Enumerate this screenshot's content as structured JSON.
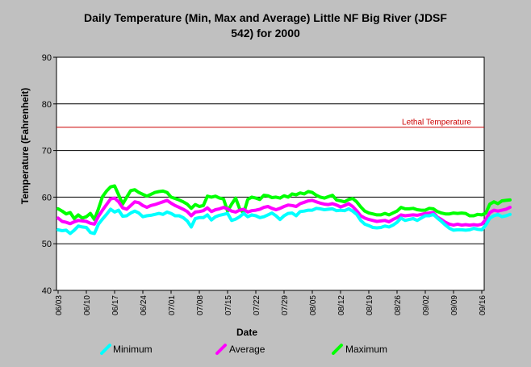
{
  "chart_data": {
    "type": "line",
    "title_line1": "Daily Temperature (Min, Max and Average) Little NF Big River (JDSF",
    "title_line2": "542) for 2000",
    "xlabel": "Date",
    "ylabel": "Temperature (Fahrenheit)",
    "ylim": [
      40,
      90
    ],
    "yticks": [
      40,
      50,
      60,
      70,
      80,
      90
    ],
    "grid": "horizontal",
    "legend_position": "bottom",
    "x_start": "06/03",
    "x_end": "09/21",
    "xtick_labels": [
      "06/03",
      "06/10",
      "06/17",
      "06/24",
      "07/01",
      "07/08",
      "07/15",
      "07/22",
      "07/29",
      "08/05",
      "08/12",
      "08/19",
      "08/26",
      "09/02",
      "09/09",
      "09/16"
    ],
    "annotation": {
      "text": "Lethal Temperature",
      "value": 75,
      "color": "#cc0000"
    },
    "series": [
      {
        "name": "Minimum",
        "color": "#00ffff",
        "values": [
          53.0,
          52.8,
          52.9,
          52.2,
          52.9,
          53.8,
          53.6,
          53.5,
          52.4,
          52.2,
          54.2,
          55.3,
          56.3,
          57.4,
          56.8,
          57.2,
          55.9,
          56.0,
          56.6,
          57.0,
          56.6,
          55.8,
          56.0,
          56.1,
          56.3,
          56.5,
          56.3,
          56.8,
          56.5,
          56.0,
          56.0,
          55.6,
          54.9,
          53.6,
          55.4,
          55.6,
          55.6,
          56.2,
          55.1,
          55.8,
          56.1,
          56.3,
          56.5,
          55.0,
          55.3,
          55.8,
          56.5,
          55.8,
          56.2,
          56.0,
          55.6,
          55.8,
          56.2,
          56.6,
          56.0,
          55.2,
          56.0,
          56.5,
          56.6,
          56.0,
          56.9,
          57.0,
          57.2,
          57.2,
          57.6,
          57.5,
          57.3,
          57.4,
          57.5,
          57.1,
          57.2,
          57.1,
          57.5,
          57.0,
          56.3,
          55.0,
          54.2,
          53.9,
          53.5,
          53.4,
          53.5,
          53.8,
          53.6,
          54.0,
          54.6,
          55.5,
          55.0,
          55.2,
          55.4,
          55.0,
          55.5,
          56.0,
          56.0,
          56.3,
          55.5,
          54.8,
          54.0,
          53.3,
          52.9,
          53.0,
          53.0,
          52.9,
          53.0,
          53.3,
          53.1,
          53.0,
          54.0,
          55.5,
          56.0,
          56.3,
          55.8,
          56.0,
          56.3
        ]
      },
      {
        "name": "Average",
        "color": "#ff00ff",
        "values": [
          55.5,
          54.8,
          54.6,
          54.3,
          54.7,
          55.0,
          54.9,
          54.8,
          54.4,
          54.2,
          55.9,
          57.2,
          58.4,
          59.6,
          59.8,
          59.0,
          57.7,
          57.4,
          58.2,
          59.0,
          58.8,
          58.2,
          57.8,
          58.2,
          58.4,
          58.7,
          59.0,
          59.3,
          58.7,
          58.2,
          57.8,
          57.4,
          56.9,
          56.0,
          56.8,
          56.9,
          57.1,
          57.7,
          56.9,
          57.3,
          57.5,
          57.8,
          57.5,
          57.0,
          56.8,
          57.2,
          57.4,
          56.8,
          57.1,
          57.2,
          57.4,
          57.8,
          58.0,
          57.6,
          57.3,
          57.6,
          58.0,
          58.3,
          58.2,
          58.0,
          58.6,
          58.9,
          59.2,
          59.3,
          59.0,
          58.7,
          58.5,
          58.4,
          58.6,
          58.3,
          57.9,
          58.2,
          58.6,
          58.0,
          57.1,
          56.0,
          55.5,
          55.2,
          55.0,
          54.8,
          54.9,
          55.0,
          54.7,
          55.2,
          55.6,
          56.2,
          56.0,
          56.1,
          56.2,
          56.1,
          56.3,
          56.5,
          56.6,
          56.7,
          55.7,
          55.2,
          54.6,
          54.2,
          54.0,
          54.2,
          54.0,
          54.1,
          54.0,
          54.1,
          54.0,
          54.2,
          55.2,
          56.7,
          57.2,
          57.0,
          57.2,
          57.4,
          57.8
        ]
      },
      {
        "name": "Maximum",
        "color": "#00ff00",
        "values": [
          57.5,
          57.0,
          56.4,
          56.7,
          55.4,
          56.2,
          55.5,
          55.8,
          56.5,
          55.2,
          57.5,
          60.1,
          61.3,
          62.2,
          62.4,
          60.5,
          58.5,
          60.0,
          61.4,
          61.6,
          61.0,
          60.6,
          60.2,
          60.6,
          61.0,
          61.2,
          61.3,
          61.0,
          60.0,
          59.7,
          59.4,
          59.0,
          58.5,
          57.6,
          58.4,
          58.0,
          58.2,
          60.2,
          60.0,
          60.2,
          59.8,
          59.6,
          57.0,
          58.5,
          59.8,
          57.5,
          56.6,
          59.5,
          60.0,
          59.8,
          59.5,
          60.4,
          60.3,
          59.9,
          60.0,
          59.8,
          60.3,
          60.0,
          60.7,
          60.5,
          60.9,
          60.7,
          61.2,
          61.0,
          60.4,
          60.0,
          59.8,
          60.1,
          60.4,
          59.4,
          59.2,
          59.0,
          59.5,
          59.7,
          59.0,
          57.9,
          57.0,
          56.6,
          56.4,
          56.2,
          56.2,
          56.5,
          56.2,
          56.6,
          57.0,
          57.8,
          57.5,
          57.5,
          57.6,
          57.3,
          57.2,
          57.2,
          57.6,
          57.5,
          56.9,
          56.6,
          56.4,
          56.4,
          56.6,
          56.5,
          56.6,
          56.5,
          56.0,
          56.0,
          56.3,
          56.2,
          56.6,
          58.5,
          59.0,
          58.6,
          59.2,
          59.3,
          59.4
        ]
      }
    ]
  }
}
